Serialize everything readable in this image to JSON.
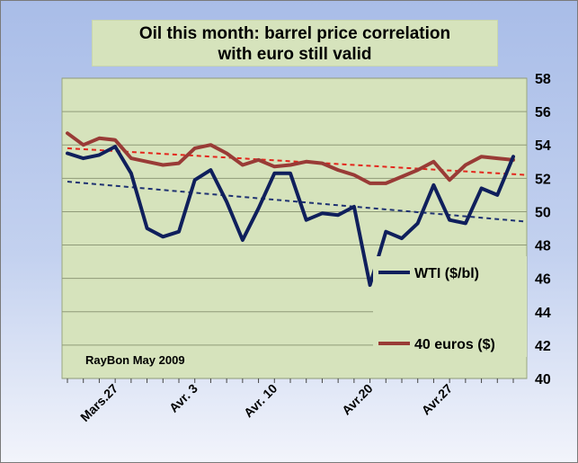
{
  "chart_data": {
    "type": "line",
    "title_line1": "Oil this month: barrel price correlation",
    "title_line2": "with euro still valid",
    "credit": "RayBon May  2009",
    "ylim": [
      40,
      58
    ],
    "y_ticks": [
      40,
      42,
      44,
      46,
      48,
      50,
      52,
      54,
      56,
      58
    ],
    "x_labels": [
      {
        "label": "Mars.27",
        "index": 3
      },
      {
        "label": "Avr. 3",
        "index": 8
      },
      {
        "label": "Avr. 10",
        "index": 13
      },
      {
        "label": "Avr.20",
        "index": 19
      },
      {
        "label": "Avr.27",
        "index": 24
      }
    ],
    "grid": true,
    "legend_position": "right",
    "series": [
      {
        "name": "WTI ($/bl)",
        "color": "#0f1f5c",
        "values": [
          53.5,
          53.2,
          53.4,
          53.9,
          52.3,
          49.0,
          48.5,
          48.8,
          51.9,
          52.5,
          50.6,
          48.3,
          50.2,
          52.3,
          52.3,
          49.5,
          49.9,
          49.8,
          50.3,
          45.6,
          48.8,
          48.4,
          49.3,
          51.6,
          49.5,
          49.3,
          51.4,
          51.0,
          53.3
        ],
        "trend": [
          51.8,
          49.4
        ]
      },
      {
        "name": "40 euros ($)",
        "color": "#993b36",
        "values": [
          54.7,
          54.0,
          54.4,
          54.3,
          53.2,
          53.0,
          52.8,
          52.9,
          53.8,
          54.0,
          53.5,
          52.8,
          53.1,
          52.7,
          52.8,
          53.0,
          52.9,
          52.5,
          52.2,
          51.7,
          51.7,
          52.1,
          52.5,
          53.0,
          51.9,
          52.8,
          53.3,
          53.2,
          53.1
        ],
        "trend": [
          53.8,
          52.2
        ]
      }
    ]
  }
}
